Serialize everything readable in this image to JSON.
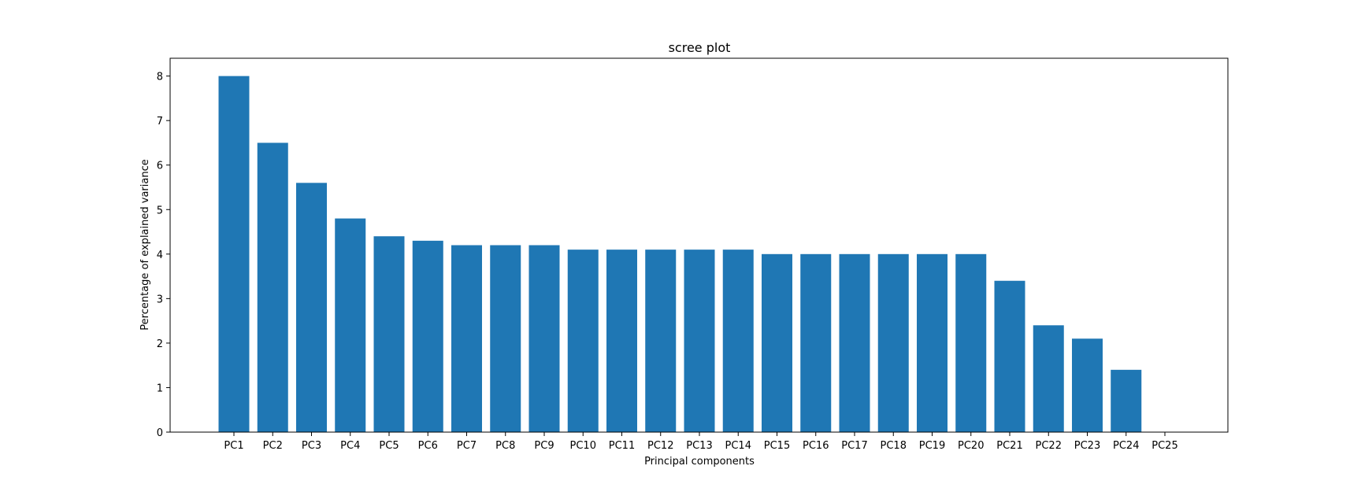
{
  "chart_data": {
    "type": "bar",
    "title": "scree plot",
    "xlabel": "Principal components",
    "ylabel": "Percentage of explained variance",
    "categories": [
      "PC1",
      "PC2",
      "PC3",
      "PC4",
      "PC5",
      "PC6",
      "PC7",
      "PC8",
      "PC9",
      "PC10",
      "PC11",
      "PC12",
      "PC13",
      "PC14",
      "PC15",
      "PC16",
      "PC17",
      "PC18",
      "PC19",
      "PC20",
      "PC21",
      "PC22",
      "PC23",
      "PC24",
      "PC25"
    ],
    "values": [
      8.0,
      6.5,
      5.6,
      4.8,
      4.4,
      4.3,
      4.2,
      4.2,
      4.2,
      4.1,
      4.1,
      4.1,
      4.1,
      4.1,
      4.0,
      4.0,
      4.0,
      4.0,
      4.0,
      4.0,
      3.4,
      2.4,
      2.1,
      1.4,
      0.0
    ],
    "yticks": [
      0,
      1,
      2,
      3,
      4,
      5,
      6,
      7,
      8
    ],
    "ylim": [
      0,
      8.4
    ],
    "grid": false,
    "bar_color": "#1f77b4"
  }
}
